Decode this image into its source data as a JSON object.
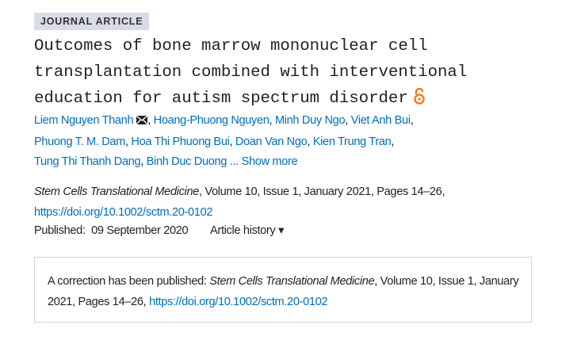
{
  "badge": "JOURNAL ARTICLE",
  "title": "Outcomes of bone marrow mononuclear cell transplantation combined with interventional education for autism spectrum disorder",
  "open_access_icon": "open-access-lock-icon",
  "colors": {
    "link": "#006fb7",
    "open_access": "#f47b20",
    "badge_bg": "#d9dce6"
  },
  "authors": [
    "Liem Nguyen Thanh",
    "Hoang-Phuong Nguyen",
    "Minh Duy Ngo",
    "Viet Anh Bui",
    "Phuong T. M. Dam",
    "Hoa Thi Phuong Bui",
    "Doan Van Ngo",
    "Kien Trung Tran",
    "Tung Thi Thanh Dang",
    "Binh Duc Duong"
  ],
  "authors_ellipsis": " ... ",
  "show_more": "Show more",
  "citation": {
    "journal": "Stem Cells Translational Medicine",
    "details": ", Volume 10, Issue 1, January 2021, Pages 14–26,",
    "doi": "https://doi.org/10.1002/sctm.20-0102"
  },
  "published_label": "Published:",
  "published_date": "09 September 2020",
  "article_history": "Article history ▾",
  "correction": {
    "prefix": "A correction has been published: ",
    "journal": "Stem Cells Translational Medicine",
    "details": ", Volume 10, Issue 1, January 2021, Pages 14–26, ",
    "doi": "https://doi.org/10.1002/sctm.20-0102"
  }
}
